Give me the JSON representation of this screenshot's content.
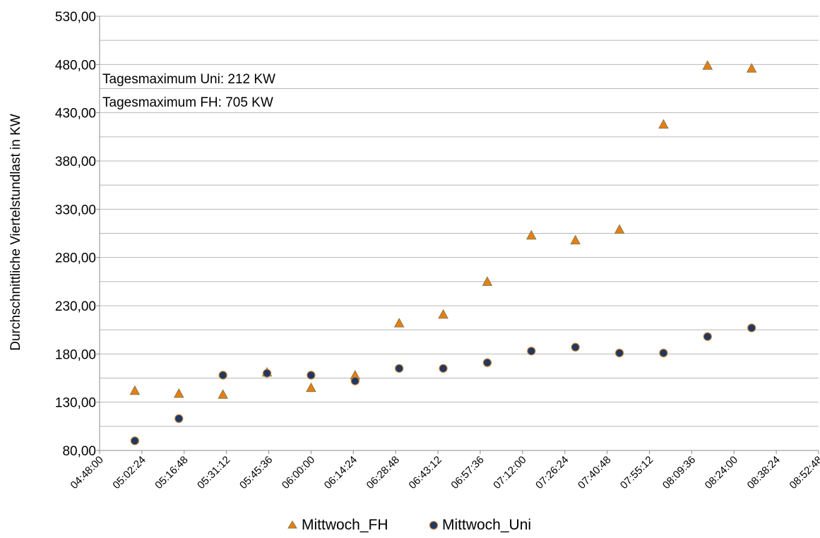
{
  "chart_data": {
    "type": "scatter",
    "title": "",
    "xlabel": "",
    "ylabel": "Durchschnittliche Viertelstundlast in KW",
    "ylim": [
      80,
      530
    ],
    "y_major_step": 50,
    "y_minor_step": 25,
    "grid": true,
    "legend_position": "bottom",
    "x_ticks": [
      "04:48:00",
      "05:02:24",
      "05:16:48",
      "05:31:12",
      "05:45:36",
      "06:00:00",
      "06:14:24",
      "06:28:48",
      "06:43:12",
      "06:57:36",
      "07:12:00",
      "07:26:24",
      "07:40:48",
      "07:55:12",
      "08:09:36",
      "08:24:00",
      "08:38:24",
      "08:52:48"
    ],
    "y_ticks": [
      "80,00",
      "130,00",
      "180,00",
      "230,00",
      "280,00",
      "330,00",
      "380,00",
      "430,00",
      "480,00",
      "530,00"
    ],
    "x": [
      "05:00:00",
      "05:15:00",
      "05:30:00",
      "05:45:00",
      "06:00:00",
      "06:15:00",
      "06:30:00",
      "06:45:00",
      "07:00:00",
      "07:15:00",
      "07:30:00",
      "07:45:00",
      "08:00:00",
      "08:15:00",
      "08:30:00"
    ],
    "series": [
      {
        "name": "Mittwoch_FH",
        "marker": "triangle",
        "color": "#e67e14",
        "edge": "#8c7a4c",
        "values": [
          142,
          139,
          138,
          161,
          145,
          158,
          212,
          221,
          255,
          303,
          298,
          309,
          418,
          479,
          476
        ]
      },
      {
        "name": "Mittwoch_Uni",
        "marker": "circle",
        "color": "#1f3864",
        "edge": "#c07a2c",
        "values": [
          90,
          113,
          158,
          160,
          158,
          152,
          165,
          165,
          171,
          183,
          187,
          181,
          181,
          198,
          207
        ]
      }
    ],
    "annotations": [
      "Tagesmaximum Uni: 212 KW",
      "Tagesmaximum FH: 705 KW"
    ]
  }
}
